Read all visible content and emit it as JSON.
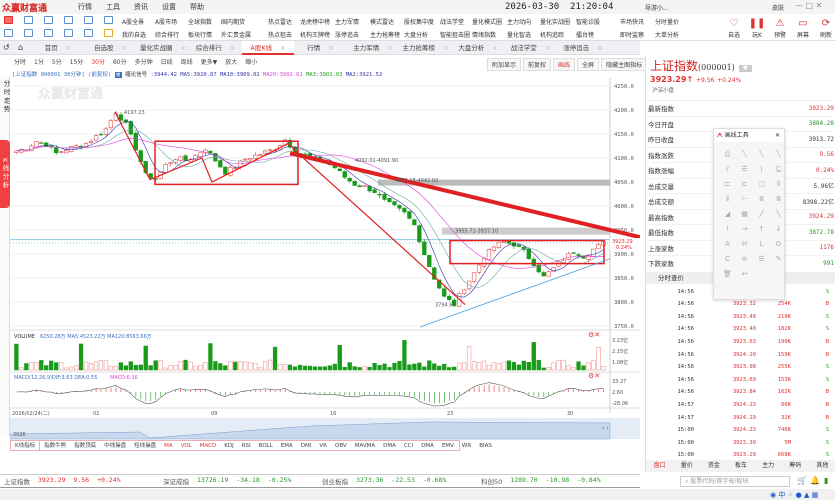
{
  "app": {
    "name": "众赢财富通",
    "menu": [
      "行情",
      "工具",
      "资讯",
      "设置",
      "帮助"
    ],
    "date": "2026-03-30",
    "time": "21:20:04",
    "user": "导游小...",
    "skin": "皮肤"
  },
  "toolbar": {
    "row1": [
      "A股全景",
      "A股市场",
      "全球指数",
      "国内期货",
      "热点雷达",
      "龙虎榜中榜",
      "主力军情",
      "模式雷达",
      "股权集中度",
      "战法学堂",
      "量化模式圈",
      "主力动向",
      "量化实战圈",
      "智能诊股",
      "市场快讯",
      "分时量价"
    ],
    "row2": [
      "我的自选",
      "综合排行",
      "板块行情",
      "外汇贵金属",
      "热点狙击",
      "机构王牌榜",
      "涨停追击",
      "主力抢筹榜",
      "大盘分析",
      "智能狙击圈",
      "情绪指数",
      "量化智选",
      "机构追踪",
      "擂台榜",
      "即时监察",
      "大单分析"
    ],
    "big": [
      {
        "label": "自选",
        "icon": "heart-icon"
      },
      {
        "label": "玩K",
        "icon": "candle-icon"
      },
      {
        "label": "预警",
        "icon": "alarm-icon"
      },
      {
        "label": "屏幕",
        "icon": "monitor-icon"
      },
      {
        "label": "刷新",
        "icon": "refresh-icon"
      }
    ]
  },
  "tabs": [
    "首页",
    "自选股",
    "量化实战圈",
    "综合排行",
    "A股K线",
    "行情",
    "主力军情",
    "主力抢筹榜",
    "大盘分析",
    "战法学堂",
    "涨停追击"
  ],
  "active_tab": "A股K线",
  "periods": [
    "分时",
    "1分",
    "5分",
    "15分",
    "30分",
    "60分",
    "多分钟",
    "日线",
    "周线",
    "更多▼",
    "放大",
    "缩小"
  ],
  "active_period": "30分",
  "chart_buttons": [
    "附加显示",
    "前复权",
    "画线",
    "全屏",
    "隐藏主图指标"
  ],
  "sidebar": {
    "intraday": "分时走势",
    "kline": "K线分析"
  },
  "indicator_line": {
    "security": "[上证指数 000001 30分钟]",
    "adj": "(前复权)",
    "signal": "缠论信号",
    "values": ":3944.42 MA5:3920.87 MA10:3909.02",
    "ma20": "MA20:3902.61",
    "ma3": "MA3:3901.03",
    "ma2": "MA2:3921.52"
  },
  "chart_data": {
    "type": "candlestick",
    "ylim": [
      3750,
      4250
    ],
    "yticks": [
      "4250.0",
      "4200.0",
      "4150.0",
      "4100.0",
      "4050.0",
      "4000.0",
      "3950.0",
      "3900.0",
      "3850.0",
      "3800.0",
      "3750.0"
    ],
    "xticks": [
      "2026/02/24(二)",
      "02",
      "09",
      "16",
      "23",
      "30"
    ],
    "closes": [
      4115,
      4120,
      4135,
      4128,
      4110,
      4118,
      4124,
      4130,
      4145,
      4160,
      4196,
      4170,
      4120,
      4065,
      4058,
      4085,
      4100,
      4095,
      4105,
      4120,
      4095,
      4070,
      4082,
      4098,
      4105,
      4112,
      4120,
      4138,
      4115,
      4105,
      4098,
      4092,
      4080,
      4060,
      4045,
      4040,
      4030,
      4010,
      3998,
      3985,
      3960,
      3900,
      3850,
      3810,
      3795,
      3830,
      3860,
      3895,
      3915,
      3925,
      3920,
      3905,
      3880,
      3852,
      3870,
      3890,
      3905,
      3895,
      3910,
      3923
    ],
    "labels": {
      "high": "4197.23",
      "range1": "4092.01-4091.90",
      "range2": "4057.18-4042.02",
      "range3": "3955.71-3937.10",
      "low": "3794.60"
    },
    "last_price": "3923.29",
    "last_pct": "0.24%"
  },
  "volume": {
    "title": "VOLUME",
    "values": "6250.28万 MA5:4523.22万 MA120:8563.66万",
    "axis": [
      "3.23亿",
      "2.15亿",
      "1.08亿"
    ]
  },
  "macd": {
    "title": "MACD(12,26,9)",
    "values": "DIF:3.63 DEA:0.55",
    "macd": "MACD:6.16",
    "axis": [
      "33.27",
      "2.60",
      "-28.06"
    ]
  },
  "navigator": {
    "year": "2026"
  },
  "indicator_tabs": [
    "K线指标",
    "指数牛熊",
    "指数顶底",
    "中线操盘",
    "短线操盘",
    "MA",
    "VOL",
    "MACD",
    "KDJ",
    "RSI",
    "BOLL",
    "EMA",
    "DMI",
    "VR",
    "OBV",
    "MAVMA",
    "DMA",
    "CCI",
    "DMA",
    "EMV",
    "WR",
    "BIAS"
  ],
  "status": [
    {
      "name": "上证指数",
      "price": "3923.29",
      "chg": "9.56",
      "pct": "+0.24%",
      "dir": "up"
    },
    {
      "name": "深证成指",
      "price": "13726.19",
      "chg": "-34.18",
      "pct": "-0.25%",
      "dir": "dn"
    },
    {
      "name": "创业板指",
      "price": "3273.36",
      "chg": "-22.53",
      "pct": "-0.68%",
      "dir": "dn"
    },
    {
      "name": "科创50",
      "price": "1289.70",
      "chg": "-10.98",
      "pct": "-0.84%",
      "dir": "dn"
    }
  ],
  "quote": {
    "title": "上证指数",
    "code": "(000001)",
    "price": "3923.29",
    "arrow": "↑",
    "chg": "+9.56",
    "pct": "+0.24%",
    "sub": "沪深小盘",
    "rows": [
      {
        "label": "最新指数",
        "value": "3923.29",
        "dir": "up"
      },
      {
        "label": "今日开盘",
        "value": "3884.28",
        "dir": "dn"
      },
      {
        "label": "昨日收盘",
        "value": "3913.72",
        "dir": ""
      },
      {
        "label": "指数涨跌",
        "value": "9.56",
        "dir": "up"
      },
      {
        "label": "指数涨幅",
        "value": "0.24%",
        "dir": "up"
      },
      {
        "label": "总成交量",
        "value": "5.96亿",
        "dir": ""
      },
      {
        "label": "总成交额",
        "value": "8398.22亿",
        "dir": ""
      },
      {
        "label": "最高指数",
        "value": "3924.29",
        "dir": "up"
      },
      {
        "label": "最低指数",
        "value": "3872.78",
        "dir": "dn"
      },
      {
        "label": "上涨家数",
        "value": "1176",
        "dir": "up"
      },
      {
        "label": "下跌家数",
        "value": "991",
        "dir": "dn"
      }
    ]
  },
  "trades": {
    "title": "分时查价",
    "rows": [
      {
        "t": "14:56",
        "p": "",
        "v": "",
        "s": "S"
      },
      {
        "t": "14:56",
        "p": "3923.32",
        "v": "254K",
        "s": "B"
      },
      {
        "t": "14:56",
        "p": "3923.48",
        "v": "210K",
        "s": "S"
      },
      {
        "t": "14:56",
        "p": "3923.40",
        "v": "182K",
        "s": "S"
      },
      {
        "t": "14:56",
        "p": "3923.63",
        "v": "190K",
        "s": "B"
      },
      {
        "t": "14:56",
        "p": "3924.20",
        "v": "159K",
        "s": "B"
      },
      {
        "t": "14:56",
        "p": "3923.98",
        "v": "255K",
        "s": "S"
      },
      {
        "t": "14:56",
        "p": "3923.69",
        "v": "153K",
        "s": "S"
      },
      {
        "t": "14:56",
        "p": "3923.84",
        "v": "162K",
        "s": "B"
      },
      {
        "t": "14:57",
        "p": "3924.23",
        "v": "66K",
        "s": "B"
      },
      {
        "t": "14:57",
        "p": "3924.29",
        "v": "32K",
        "s": "B"
      },
      {
        "t": "15:00",
        "p": "3924.23",
        "v": "746K",
        "s": "S"
      },
      {
        "t": "15:00",
        "p": "3923.30",
        "v": "5M",
        "s": "S"
      },
      {
        "t": "15:00",
        "p": "3923.29",
        "v": "668K",
        "s": "S"
      }
    ]
  },
  "right_tabs": [
    "盘口",
    "量价",
    "资金",
    "板车",
    "主力",
    "筹码",
    "其他"
  ],
  "search": {
    "placeholder": "股票代码/首字母/板块"
  },
  "draw_panel": {
    "title": "画线工具",
    "tools": [
      "⎙",
      "╲",
      "╲",
      "╲",
      "⫽",
      "☰",
      "⟩",
      "⊑",
      "⊏",
      "⊏",
      "□",
      "⦀",
      "⦀",
      "⊢",
      "Ⅲ",
      "Ⅲ",
      "◢",
      "▦",
      "╱",
      "╲",
      "!",
      "→",
      "↑",
      "↓",
      "A",
      "H",
      "L",
      "O",
      "C",
      "⊜",
      "☰",
      "✎",
      "🗑",
      "↩"
    ]
  },
  "colors": {
    "up": "#e03030",
    "down": "#2a9a2a",
    "accent": "#d8221c"
  }
}
